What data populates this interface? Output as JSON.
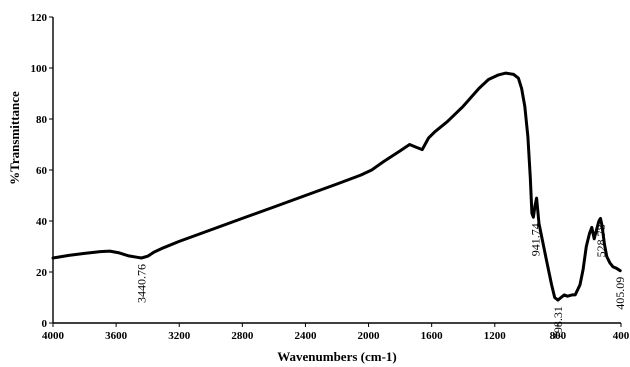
{
  "chart_data": {
    "type": "line",
    "xlabel": "Wavenumbers  (cm-1)",
    "ylabel": "%Transmittance",
    "xlim": [
      4000,
      400
    ],
    "ylim": [
      0,
      120
    ],
    "x_reversed": true,
    "grid": false,
    "xticks": [
      4000,
      3600,
      3200,
      2800,
      2400,
      2000,
      1600,
      1200,
      800,
      400
    ],
    "yticks": [
      0,
      20,
      40,
      60,
      80,
      100,
      120
    ],
    "series": [
      {
        "x": [
          4000,
          3900,
          3800,
          3700,
          3640,
          3580,
          3520,
          3470,
          3440,
          3400,
          3360,
          3300,
          3200,
          3000,
          2800,
          2600,
          2400,
          2200,
          2050,
          1980,
          1900,
          1800,
          1740,
          1700,
          1660,
          1620,
          1580,
          1500,
          1400,
          1300,
          1240,
          1180,
          1130,
          1080,
          1050,
          1030,
          1010,
          990,
          975,
          965,
          955,
          945,
          935,
          920,
          900,
          870,
          840,
          820,
          800,
          780,
          760,
          740,
          710,
          690,
          660,
          640,
          620,
          600,
          585,
          570,
          555,
          540,
          530,
          520,
          505,
          490,
          470,
          450,
          430,
          405
        ],
        "y": [
          25.5,
          26.5,
          27.3,
          28,
          28.2,
          27.5,
          26.3,
          25.8,
          25.5,
          26.2,
          27.8,
          29.5,
          32,
          36.5,
          41,
          45.5,
          50,
          54.5,
          58,
          60,
          63.5,
          67.5,
          70,
          69,
          68,
          72.5,
          75,
          79,
          85,
          92,
          95.5,
          97.2,
          98,
          97.5,
          96,
          92,
          85,
          73,
          57,
          43,
          41.5,
          46,
          49,
          39,
          33,
          24,
          15,
          10,
          9,
          10,
          11,
          10.5,
          11,
          11,
          15,
          21,
          30,
          35,
          37.5,
          33,
          36.5,
          40,
          41,
          38,
          31,
          26,
          23.5,
          22,
          21.5,
          20.5
        ]
      }
    ],
    "annotations": [
      {
        "text": "3440.76",
        "x": 3440,
        "y": 25.5
      },
      {
        "text": "941.74",
        "x": 941,
        "y": 41.5
      },
      {
        "text": "798.31",
        "x": 798,
        "y": 9
      },
      {
        "text": "528.78",
        "x": 528,
        "y": 41
      },
      {
        "text": "405.09",
        "x": 405,
        "y": 20.5
      }
    ]
  }
}
